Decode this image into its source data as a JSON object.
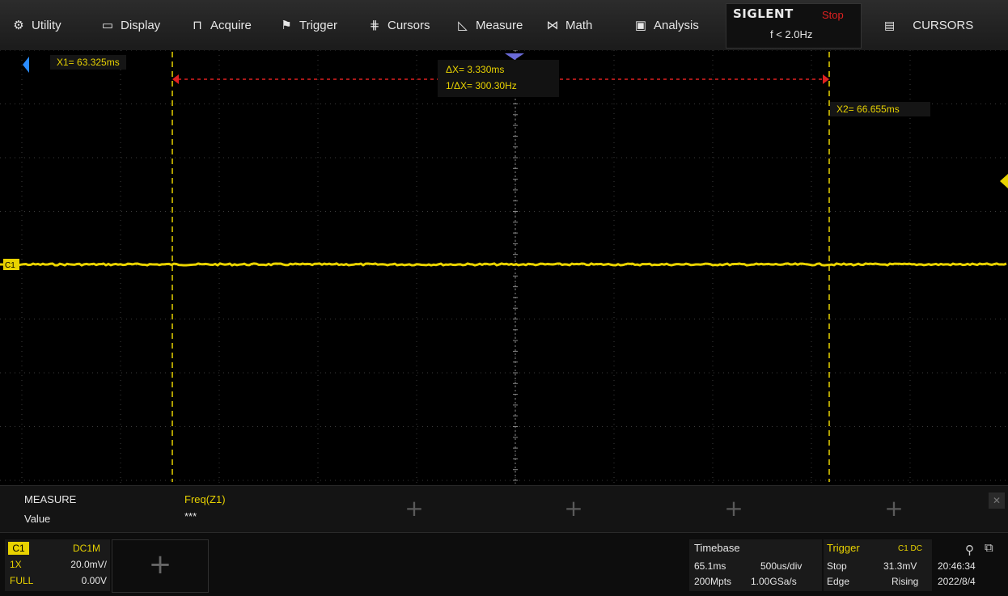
{
  "menu": [
    {
      "icon": "gear-icon",
      "glyph": "⚙",
      "label": "Utility"
    },
    {
      "icon": "monitor-icon",
      "glyph": "▭",
      "label": "Display"
    },
    {
      "icon": "acquire-icon",
      "glyph": "⊓",
      "label": "Acquire"
    },
    {
      "icon": "flag-icon",
      "glyph": "⚑",
      "label": "Trigger"
    },
    {
      "icon": "cursors-icon",
      "glyph": "⋕",
      "label": "Cursors"
    },
    {
      "icon": "ruler-icon",
      "glyph": "◺",
      "label": "Measure"
    },
    {
      "icon": "math-icon",
      "glyph": "⋈",
      "label": "Math"
    },
    {
      "icon": "analysis-icon",
      "glyph": "▣",
      "label": "Analysis"
    }
  ],
  "brand": {
    "name": "SIGLENT",
    "state": "Stop",
    "freq": "f < 2.0Hz"
  },
  "right_menu": {
    "icon": "document-icon",
    "glyph": "▤",
    "label": "CURSORS"
  },
  "cursors": {
    "x1_label": "X1= 63.325ms",
    "x2_label": "X2= 66.655ms",
    "delta_x": "ΔX= 3.330ms",
    "inv_delta_x": "1/ΔX= 300.30Hz"
  },
  "trace": {
    "channel_marker": "C1",
    "color": "#e8d200"
  },
  "colors": {
    "trace": "#e8d200",
    "cursor_delta": "#e02020",
    "grid": "#3a3a3a",
    "screen_bg": "#000000"
  },
  "measure": {
    "title": "MEASURE",
    "value_label": "Value",
    "item_name": "Freq(Z1)",
    "item_value": "***"
  },
  "channel1": {
    "badge": "C1",
    "coupling": "DC1M",
    "probe": "1X",
    "scale": "20.0mV/",
    "bandwidth": "FULL",
    "offset": "0.00V"
  },
  "timebase": {
    "title": "Timebase",
    "delay": "65.1ms",
    "scale": "500us/div",
    "memory": "200Mpts",
    "sample_rate": "1.00GSa/s"
  },
  "trigger": {
    "title": "Trigger",
    "source": "C1 DC",
    "state": "Stop",
    "level": "31.3mV",
    "type": "Edge",
    "slope": "Rising"
  },
  "clock": {
    "time": "20:46:34",
    "date": "2022/8/4"
  }
}
